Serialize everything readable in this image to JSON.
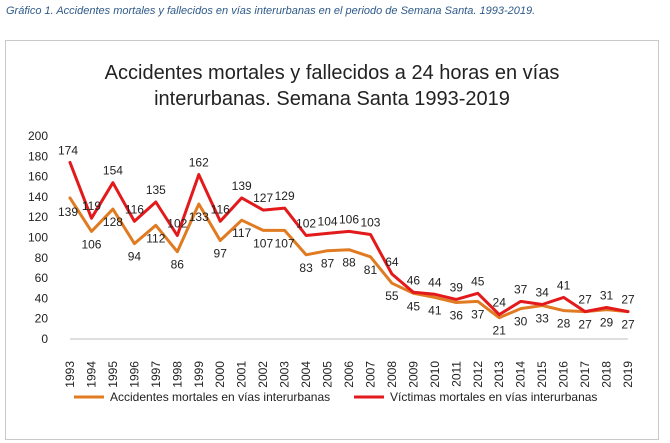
{
  "caption": "Gráfico 1. Accidentes mortales y fallecidos en vías interurbanas en el periodo de Semana Santa. 1993-2019.",
  "chart_data": {
    "type": "line",
    "title_line1": "Accidentes mortales y fallecidos a 24 horas en vías",
    "title_line2": "interurbanas. Semana Santa 1993-2019",
    "x": [
      "1993",
      "1994",
      "1995",
      "1996",
      "1997",
      "1998",
      "1999",
      "2000",
      "2001",
      "2002",
      "2003",
      "2004",
      "2005",
      "2006",
      "2007",
      "2008",
      "2009",
      "2010",
      "2011",
      "2012",
      "2013",
      "2014",
      "2015",
      "2016",
      "2017",
      "2018",
      "2019"
    ],
    "ylim": [
      0,
      200
    ],
    "yticks": [
      0,
      20,
      40,
      60,
      80,
      100,
      120,
      140,
      160,
      180,
      200
    ],
    "grid": false,
    "legend_position": "bottom",
    "series": [
      {
        "name": "Accidentes mortales en vías interurbanas",
        "color": "#e07b22",
        "values": [
          139,
          106,
          128,
          94,
          112,
          86,
          133,
          97,
          117,
          107,
          107,
          83,
          87,
          88,
          81,
          55,
          45,
          41,
          36,
          37,
          21,
          30,
          33,
          28,
          27,
          29,
          27
        ]
      },
      {
        "name": "Víctimas mortales en vías interurbanas",
        "color": "#e31a1c",
        "values": [
          174,
          119,
          154,
          116,
          135,
          102,
          162,
          116,
          139,
          127,
          129,
          102,
          104,
          106,
          103,
          64,
          46,
          44,
          39,
          45,
          24,
          37,
          34,
          41,
          27,
          31,
          27
        ]
      }
    ]
  }
}
